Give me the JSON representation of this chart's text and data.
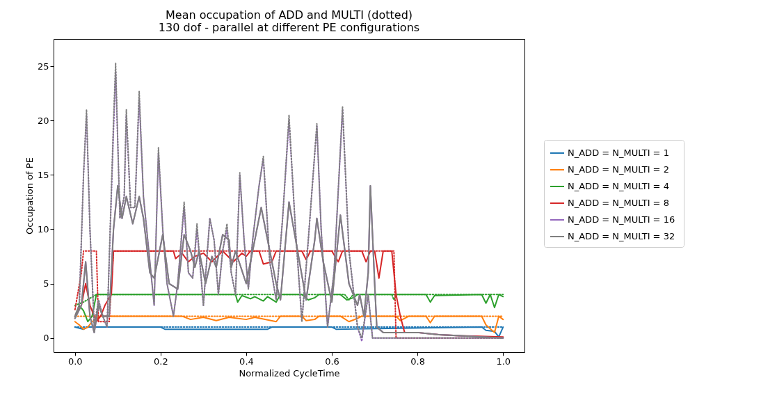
{
  "chart_data": {
    "type": "line",
    "title": "Mean occupation of ADD and MULTI (dotted)\n130 dof - parallel at different PE configurations",
    "xlabel": "Normalized CycleTime",
    "ylabel": "Occupation of PE",
    "xlim": [
      -0.05,
      1.05
    ],
    "xticks": [
      {
        "value": 0,
        "label": "0.0"
      },
      {
        "value": 0.2,
        "label": "0.2"
      },
      {
        "value": 0.4,
        "label": "0.4"
      },
      {
        "value": 0.6,
        "label": "0.6"
      },
      {
        "value": 0.8,
        "label": "0.8"
      },
      {
        "value": 1,
        "label": "1.0"
      }
    ],
    "ylim": [
      -1.3,
      27.5
    ],
    "yticks": [
      0,
      5,
      10,
      15,
      20,
      25
    ],
    "grid": false,
    "legend": "right",
    "series": [
      {
        "name": "N_ADD = N_MULTI =  1",
        "color": "#1f77b4",
        "line_style": "solid",
        "x": [
          0,
          0.02,
          0.03,
          0.2,
          0.21,
          0.45,
          0.46,
          0.6,
          0.61,
          0.95,
          0.96,
          0.98,
          0.99,
          1.0
        ],
        "values": [
          1,
          0.8,
          1,
          1,
          0.8,
          0.8,
          1,
          1,
          0.8,
          1,
          0.7,
          0.6,
          0.1,
          1
        ]
      },
      {
        "color": "#1f77b4",
        "line_style": "dotted",
        "x": [
          0,
          0.5,
          1.0
        ],
        "values": [
          1,
          1,
          1
        ]
      },
      {
        "name": "N_ADD = N_MULTI =  2",
        "color": "#ff7f0e",
        "line_style": "solid",
        "x": [
          0,
          0.01,
          0.02,
          0.03,
          0.04,
          0.06,
          0.25,
          0.27,
          0.3,
          0.33,
          0.36,
          0.4,
          0.42,
          0.47,
          0.48,
          0.53,
          0.54,
          0.56,
          0.57,
          0.62,
          0.64,
          0.66,
          0.67,
          0.75,
          0.76,
          0.77,
          0.78,
          0.82,
          0.83,
          0.84,
          0.95,
          0.96,
          0.98,
          0.99,
          1.0
        ],
        "values": [
          1.5,
          1.2,
          0.8,
          1,
          1.5,
          2,
          2,
          1.7,
          1.9,
          1.6,
          1.9,
          1.7,
          1.9,
          1.5,
          2,
          2,
          1.6,
          1.7,
          2,
          2,
          1.5,
          1.8,
          2,
          2,
          1.6,
          1.8,
          2,
          2,
          1.4,
          2,
          2,
          1.2,
          0.5,
          2,
          1.7
        ]
      },
      {
        "color": "#ff7f0e",
        "line_style": "dotted",
        "x": [
          0,
          0.5,
          1.0
        ],
        "values": [
          2,
          2,
          2
        ]
      },
      {
        "name": "N_ADD = N_MULTI =  4",
        "color": "#2ca02c",
        "line_style": "solid",
        "x": [
          0,
          0.01,
          0.02,
          0.03,
          0.04,
          0.05,
          0.375,
          0.38,
          0.39,
          0.41,
          0.42,
          0.44,
          0.45,
          0.47,
          0.48,
          0.53,
          0.545,
          0.56,
          0.57,
          0.62,
          0.635,
          0.65,
          0.66,
          0.75,
          0.82,
          0.83,
          0.84,
          0.95,
          0.96,
          0.97,
          0.98,
          0.99,
          1.0
        ],
        "values": [
          2,
          3,
          2.5,
          1.5,
          2,
          4,
          4,
          3.3,
          3.9,
          3.6,
          3.8,
          3.4,
          3.8,
          3.3,
          4,
          4,
          3.5,
          3.7,
          4,
          4,
          3.5,
          3.7,
          4,
          4,
          4,
          3.3,
          3.9,
          4,
          3.2,
          4,
          2.8,
          4,
          3.8
        ]
      },
      {
        "color": "#2ca02c",
        "line_style": "dotted",
        "x": [
          0,
          0.02,
          0.05,
          0.63,
          0.64,
          0.65,
          0.74,
          0.745,
          0.75,
          1.0
        ],
        "values": [
          3,
          3.3,
          4,
          4,
          3.5,
          4,
          4,
          3.5,
          4,
          4
        ]
      },
      {
        "name": "N_ADD = N_MULTI =  8",
        "color": "#d62728",
        "line_style": "solid",
        "x": [
          0,
          0.015,
          0.025,
          0.035,
          0.05,
          0.06,
          0.07,
          0.085,
          0.09,
          0.23,
          0.235,
          0.25,
          0.265,
          0.28,
          0.3,
          0.32,
          0.345,
          0.37,
          0.39,
          0.4,
          0.41,
          0.43,
          0.44,
          0.46,
          0.47,
          0.53,
          0.54,
          0.55,
          0.6,
          0.615,
          0.625,
          0.67,
          0.68,
          0.69,
          0.7,
          0.71,
          0.72,
          0.74,
          0.75,
          0.76,
          0.77,
          0.8,
          0.85,
          0.9,
          1.0
        ],
        "values": [
          2,
          3,
          5,
          3,
          1.5,
          2,
          3,
          4,
          8,
          8,
          7.3,
          7.8,
          7,
          7.5,
          7.8,
          7,
          8,
          7,
          7.8,
          7.5,
          8,
          8,
          6.8,
          7,
          8,
          8,
          7.2,
          8,
          8,
          7,
          8,
          8,
          7,
          8,
          8,
          5.5,
          8,
          8,
          4,
          2,
          0.5,
          0.5,
          0.3,
          0.2,
          0.1
        ]
      },
      {
        "color": "#d62728",
        "line_style": "dotted",
        "x": [
          0,
          0.015,
          0.02,
          0.05,
          0.055,
          0.08,
          0.09,
          0.745,
          0.75,
          1.0
        ],
        "values": [
          2.6,
          6,
          8,
          8,
          1.5,
          1.5,
          8,
          8,
          0,
          0
        ]
      },
      {
        "name": "N_ADD = N_MULTI =  16",
        "color": "#9467bd",
        "line_style": "solid",
        "x": [
          0,
          0.015,
          0.025,
          0.035,
          0.045,
          0.055,
          0.065,
          0.08,
          0.09,
          0.1,
          0.11,
          0.12,
          0.135,
          0.15,
          0.16,
          0.175,
          0.185,
          0.205,
          0.22,
          0.24,
          0.255,
          0.27,
          0.28,
          0.29,
          0.305,
          0.32,
          0.33,
          0.345,
          0.36,
          0.365,
          0.375,
          0.4,
          0.42,
          0.435,
          0.45,
          0.47,
          0.48,
          0.5,
          0.52,
          0.54,
          0.56,
          0.565,
          0.58,
          0.6,
          0.62,
          0.64,
          0.66,
          0.665,
          0.675,
          0.685,
          0.69,
          0.7,
          0.705,
          0.72,
          0.8,
          0.85,
          0.9,
          0.95,
          1.0
        ],
        "values": [
          1.8,
          3,
          7,
          2,
          0.5,
          3,
          2,
          2,
          10,
          14,
          11,
          13,
          10.5,
          13,
          11,
          6,
          5.5,
          9.5,
          5,
          4.5,
          9.5,
          8,
          6.5,
          8,
          5,
          7.5,
          6.5,
          9.5,
          9,
          6.5,
          8,
          5,
          9,
          12,
          9,
          5,
          3.5,
          12.5,
          8,
          3.5,
          9,
          11,
          7,
          3.3,
          11.3,
          5,
          3,
          4,
          2,
          6,
          14,
          5,
          1,
          0.5,
          0.5,
          0.3,
          0.2,
          0.1,
          0
        ]
      },
      {
        "color": "#9467bd",
        "line_style": "dotted",
        "x": [
          0,
          0.01,
          0.02,
          0.027,
          0.035,
          0.045,
          0.055,
          0.065,
          0.075,
          0.09,
          0.095,
          0.105,
          0.115,
          0.12,
          0.13,
          0.14,
          0.15,
          0.16,
          0.175,
          0.185,
          0.195,
          0.205,
          0.215,
          0.23,
          0.24,
          0.255,
          0.265,
          0.275,
          0.285,
          0.3,
          0.315,
          0.325,
          0.335,
          0.345,
          0.355,
          0.365,
          0.375,
          0.385,
          0.395,
          0.405,
          0.415,
          0.43,
          0.44,
          0.455,
          0.47,
          0.485,
          0.5,
          0.515,
          0.53,
          0.545,
          0.565,
          0.575,
          0.59,
          0.605,
          0.625,
          0.64,
          0.66,
          0.67,
          0.685,
          0.69,
          0.695,
          1.0
        ],
        "values": [
          2,
          3,
          15,
          20.5,
          10,
          1,
          3.5,
          2,
          1,
          19,
          24.5,
          11,
          13,
          20.5,
          12,
          12,
          22,
          13,
          7,
          3,
          17,
          10,
          5,
          2,
          5,
          12,
          6,
          5.5,
          10,
          3,
          11,
          9,
          4,
          8,
          10,
          6,
          4,
          15,
          9,
          4.5,
          9,
          14,
          16.5,
          7,
          3.5,
          11,
          20,
          10,
          1.5,
          9,
          19.5,
          10,
          1,
          6,
          21,
          8,
          1,
          -0.3,
          4,
          2,
          0,
          0
        ]
      },
      {
        "name": "N_ADD = N_MULTI =  32",
        "color": "#7f7f7f",
        "line_style": "solid",
        "x": [
          0,
          0.015,
          0.025,
          0.035,
          0.045,
          0.055,
          0.065,
          0.08,
          0.09,
          0.1,
          0.11,
          0.12,
          0.135,
          0.15,
          0.16,
          0.175,
          0.185,
          0.205,
          0.22,
          0.24,
          0.255,
          0.27,
          0.28,
          0.29,
          0.305,
          0.32,
          0.33,
          0.345,
          0.36,
          0.365,
          0.375,
          0.4,
          0.42,
          0.435,
          0.45,
          0.47,
          0.48,
          0.5,
          0.52,
          0.54,
          0.56,
          0.565,
          0.58,
          0.6,
          0.62,
          0.64,
          0.66,
          0.665,
          0.675,
          0.685,
          0.69,
          0.7,
          0.705,
          0.72,
          0.8,
          0.85,
          0.9,
          0.95,
          1.0
        ],
        "values": [
          1.8,
          3,
          7,
          2,
          0.5,
          3,
          2,
          2,
          10,
          14,
          11,
          13,
          10.5,
          13,
          11,
          6,
          5.5,
          9.5,
          5,
          4.5,
          9.5,
          8,
          6.5,
          8,
          5,
          7.5,
          6.5,
          9.5,
          9,
          6.5,
          8,
          5,
          9,
          12,
          9,
          5,
          3.5,
          12.5,
          8,
          3.5,
          9,
          11,
          7,
          3.3,
          11.3,
          5,
          3,
          4,
          2,
          6,
          14,
          5,
          1,
          0.5,
          0.5,
          0.3,
          0.2,
          0.1,
          0
        ]
      },
      {
        "color": "#7f7f7f",
        "line_style": "dotted",
        "x": [
          0,
          0.01,
          0.02,
          0.027,
          0.035,
          0.045,
          0.055,
          0.065,
          0.075,
          0.09,
          0.095,
          0.105,
          0.115,
          0.12,
          0.13,
          0.14,
          0.15,
          0.16,
          0.175,
          0.185,
          0.195,
          0.205,
          0.215,
          0.23,
          0.24,
          0.255,
          0.265,
          0.275,
          0.285,
          0.3,
          0.315,
          0.325,
          0.335,
          0.345,
          0.355,
          0.365,
          0.375,
          0.385,
          0.395,
          0.405,
          0.415,
          0.43,
          0.44,
          0.455,
          0.47,
          0.485,
          0.5,
          0.515,
          0.53,
          0.545,
          0.565,
          0.575,
          0.59,
          0.605,
          0.625,
          0.64,
          0.66,
          0.67,
          0.685,
          0.69,
          0.695,
          1.0
        ],
        "values": [
          2,
          3,
          15,
          21,
          10,
          1,
          3.5,
          2,
          1,
          20,
          25.3,
          11,
          13,
          21,
          12,
          12,
          22.7,
          13,
          7,
          3,
          17.5,
          10,
          5,
          2,
          5,
          12.5,
          6,
          5.5,
          10.5,
          3,
          11,
          9,
          4,
          8,
          10.5,
          6,
          4,
          15.2,
          9,
          4.5,
          9,
          14,
          16.7,
          7,
          3.5,
          11,
          20.5,
          10,
          1.5,
          9,
          19.7,
          10,
          1,
          6,
          21.3,
          8,
          1,
          0,
          4,
          2,
          0,
          0
        ]
      }
    ]
  }
}
